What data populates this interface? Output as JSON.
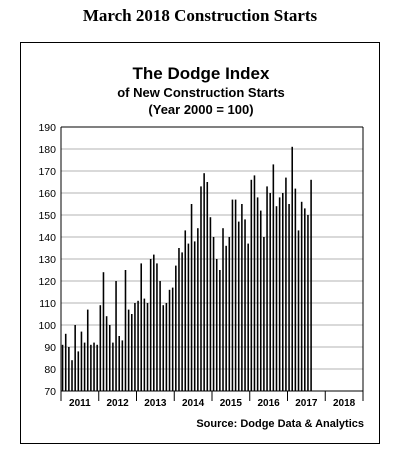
{
  "page": {
    "title": "March 2018 Construction Starts"
  },
  "chart_data": {
    "type": "bar",
    "title": "The Dodge Index",
    "subtitle_lines": [
      "of New Construction Starts",
      "(Year 2000 = 100)"
    ],
    "source": "Source:  Dodge Data & Analytics",
    "ylim": [
      70,
      190
    ],
    "yticks": [
      70,
      80,
      90,
      100,
      110,
      120,
      130,
      140,
      150,
      160,
      170,
      180,
      190
    ],
    "year_labels": [
      "2011",
      "2012",
      "2013",
      "2014",
      "2015",
      "2016",
      "2017",
      "2018"
    ],
    "grid": true,
    "bar_color": "#000000",
    "series": [
      {
        "values": [
          91,
          96,
          90,
          84,
          100,
          88,
          97,
          92,
          107,
          91,
          92,
          91,
          109,
          124,
          104,
          100,
          92,
          120,
          95,
          93,
          125,
          107,
          105,
          110,
          111,
          128,
          112,
          110,
          130,
          132,
          128,
          120,
          109,
          110,
          116,
          117,
          127,
          135,
          133,
          143,
          137,
          155,
          138,
          144,
          163,
          169,
          165,
          149,
          140,
          130,
          125,
          144,
          136,
          140,
          157,
          157,
          147,
          155,
          148,
          137,
          166,
          168,
          158,
          152,
          140,
          163,
          160,
          173,
          154,
          158,
          160,
          167,
          155,
          181,
          162,
          143,
          156,
          153,
          150,
          166
        ]
      }
    ]
  }
}
